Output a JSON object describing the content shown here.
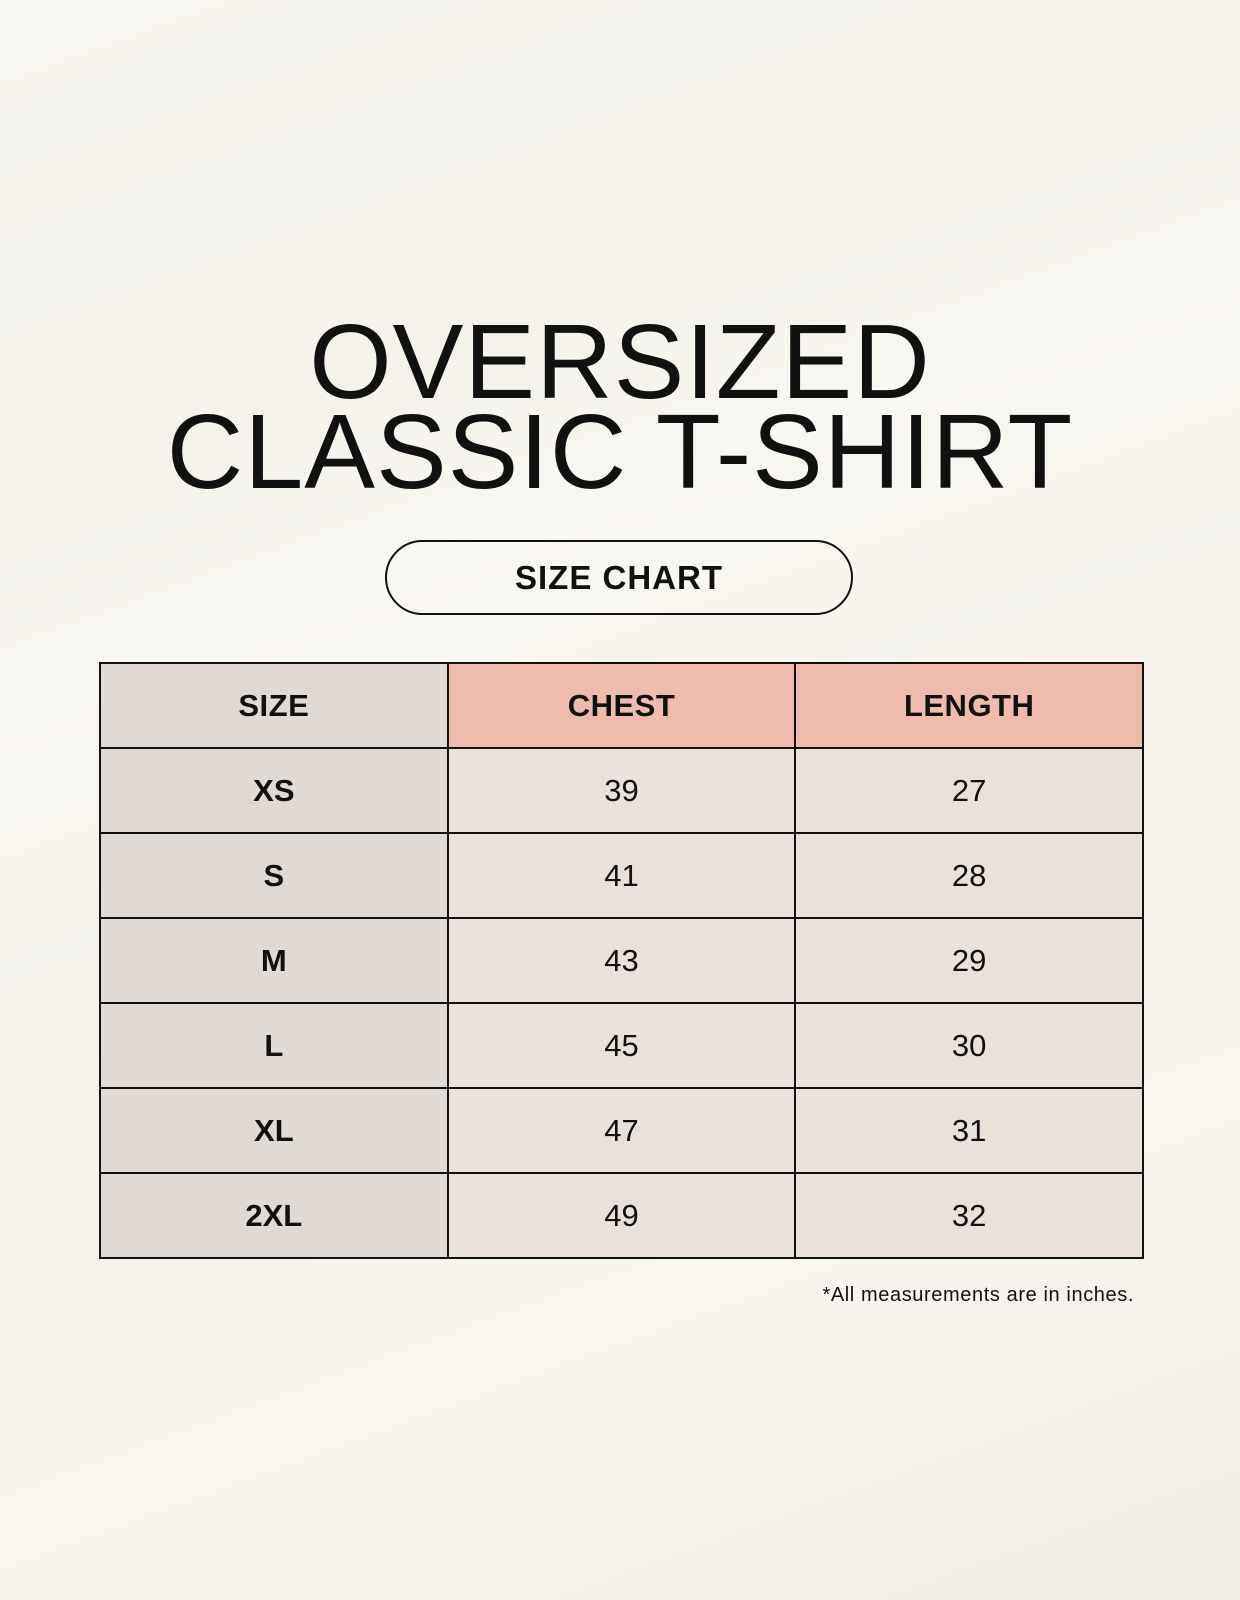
{
  "title": {
    "line1": "OVERSIZED",
    "line2": "CLASSIC T-SHIRT"
  },
  "badge": "SIZE CHART",
  "table": {
    "headers": [
      "SIZE",
      "CHEST",
      "LENGTH"
    ],
    "rows": [
      {
        "size": "XS",
        "chest": "39",
        "length": "27"
      },
      {
        "size": "S",
        "chest": "41",
        "length": "28"
      },
      {
        "size": "M",
        "chest": "43",
        "length": "29"
      },
      {
        "size": "L",
        "chest": "45",
        "length": "30"
      },
      {
        "size": "XL",
        "chest": "47",
        "length": "31"
      },
      {
        "size": "2XL",
        "chest": "49",
        "length": "32"
      }
    ]
  },
  "footnote": "*All measurements are in inches.",
  "colors": {
    "size_column": "#e0d9d4",
    "header_accent": "#edbcaf",
    "value_cells": "#eae2d8"
  }
}
